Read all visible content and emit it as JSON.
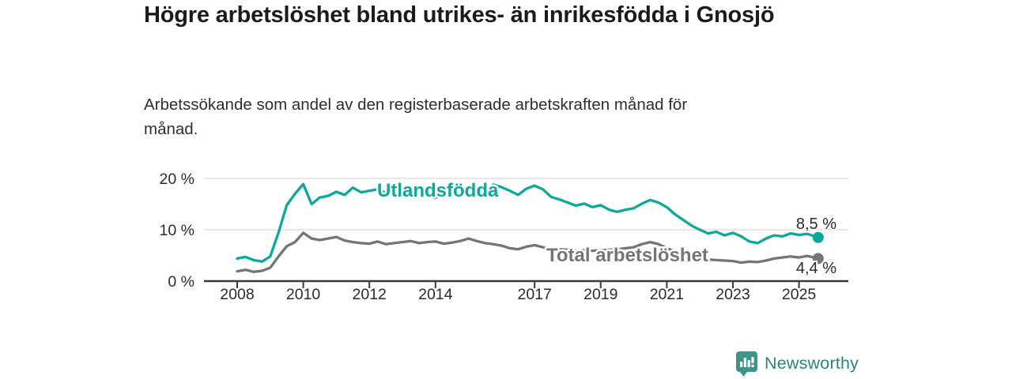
{
  "header": {
    "title": "Högre arbetslöshet bland utrikes- än inrikesfödda i Gnosjö",
    "subtitle": "Arbetssökande som andel av den registerbaserade arbetskraften månad för månad."
  },
  "branding": {
    "logo_text": "Newsworthy",
    "logo_icon": "bar-chart-speech-bubble-icon",
    "logo_text_color": "#2B857B",
    "logo_icon_color": "#3D968D"
  },
  "chart_data": {
    "type": "line",
    "title": "",
    "xlabel": "",
    "ylabel": "",
    "x_unit": "decimal year (monthly data shown, sampled quarterly)",
    "grid": "horizontal",
    "legend": "inline-labels",
    "xlim": [
      2007.9,
      2026.4
    ],
    "ylim": [
      0,
      21
    ],
    "yticks": [
      0,
      10,
      20
    ],
    "ytick_labels": [
      "0 %",
      "10 %",
      "20 %"
    ],
    "xticks": [
      2008,
      2010,
      2012,
      2014,
      2017,
      2019,
      2021,
      2023,
      2025
    ],
    "xtick_labels": [
      "2008",
      "2010",
      "2012",
      "2014",
      "2017",
      "2019",
      "2021",
      "2023",
      "2025"
    ],
    "x": [
      2008.0,
      2008.25,
      2008.5,
      2008.75,
      2009.0,
      2009.25,
      2009.5,
      2009.75,
      2010.0,
      2010.25,
      2010.5,
      2010.75,
      2011.0,
      2011.25,
      2011.5,
      2011.75,
      2012.0,
      2012.25,
      2012.5,
      2012.75,
      2013.0,
      2013.25,
      2013.5,
      2013.75,
      2014.0,
      2014.25,
      2014.5,
      2014.75,
      2015.0,
      2015.25,
      2015.5,
      2015.75,
      2016.0,
      2016.25,
      2016.5,
      2016.75,
      2017.0,
      2017.25,
      2017.5,
      2017.75,
      2018.0,
      2018.25,
      2018.5,
      2018.75,
      2019.0,
      2019.25,
      2019.5,
      2019.75,
      2020.0,
      2020.25,
      2020.5,
      2020.75,
      2021.0,
      2021.25,
      2021.5,
      2021.75,
      2022.0,
      2022.25,
      2022.5,
      2022.75,
      2023.0,
      2023.25,
      2023.5,
      2023.75,
      2024.0,
      2024.25,
      2024.5,
      2024.75,
      2025.0,
      2025.25,
      2025.58
    ],
    "series": [
      {
        "name": "Utlandsfödda",
        "color": "#0CA89B",
        "end_label": "8,5 %",
        "end_value": 8.5,
        "values": [
          4.4,
          4.7,
          4.1,
          3.8,
          4.8,
          9.5,
          14.8,
          17.0,
          18.9,
          15.0,
          16.3,
          16.6,
          17.4,
          16.8,
          18.2,
          17.3,
          17.6,
          17.9,
          17.2,
          17.5,
          17.8,
          16.9,
          17.3,
          16.6,
          16.2,
          17.0,
          17.4,
          16.8,
          17.6,
          18.0,
          17.4,
          18.8,
          18.3,
          17.6,
          16.8,
          18.0,
          18.6,
          17.9,
          16.4,
          15.9,
          15.3,
          14.7,
          15.1,
          14.4,
          14.8,
          13.9,
          13.5,
          13.9,
          14.2,
          15.1,
          15.8,
          15.3,
          14.4,
          13.0,
          11.9,
          10.8,
          10.0,
          9.3,
          9.6,
          8.9,
          9.4,
          8.7,
          7.7,
          7.4,
          8.3,
          8.9,
          8.7,
          9.3,
          9.0,
          9.2,
          8.5
        ]
      },
      {
        "name": "Total arbetslöshet",
        "color": "#757575",
        "end_label": "4,4 %",
        "end_value": 4.4,
        "values": [
          1.9,
          2.2,
          1.8,
          2.0,
          2.6,
          4.8,
          6.8,
          7.6,
          9.4,
          8.3,
          8.0,
          8.3,
          8.6,
          7.9,
          7.6,
          7.4,
          7.3,
          7.7,
          7.2,
          7.4,
          7.6,
          7.8,
          7.4,
          7.6,
          7.7,
          7.3,
          7.5,
          7.8,
          8.3,
          7.8,
          7.4,
          7.2,
          6.9,
          6.4,
          6.2,
          6.7,
          7.0,
          6.6,
          6.4,
          6.2,
          6.1,
          5.9,
          6.0,
          5.9,
          6.0,
          6.1,
          6.2,
          6.4,
          6.6,
          7.2,
          7.6,
          7.2,
          6.4,
          5.8,
          5.3,
          4.9,
          4.4,
          4.2,
          4.1,
          4.0,
          3.9,
          3.6,
          3.8,
          3.7,
          4.0,
          4.4,
          4.6,
          4.8,
          4.6,
          4.9,
          4.4
        ]
      }
    ]
  }
}
